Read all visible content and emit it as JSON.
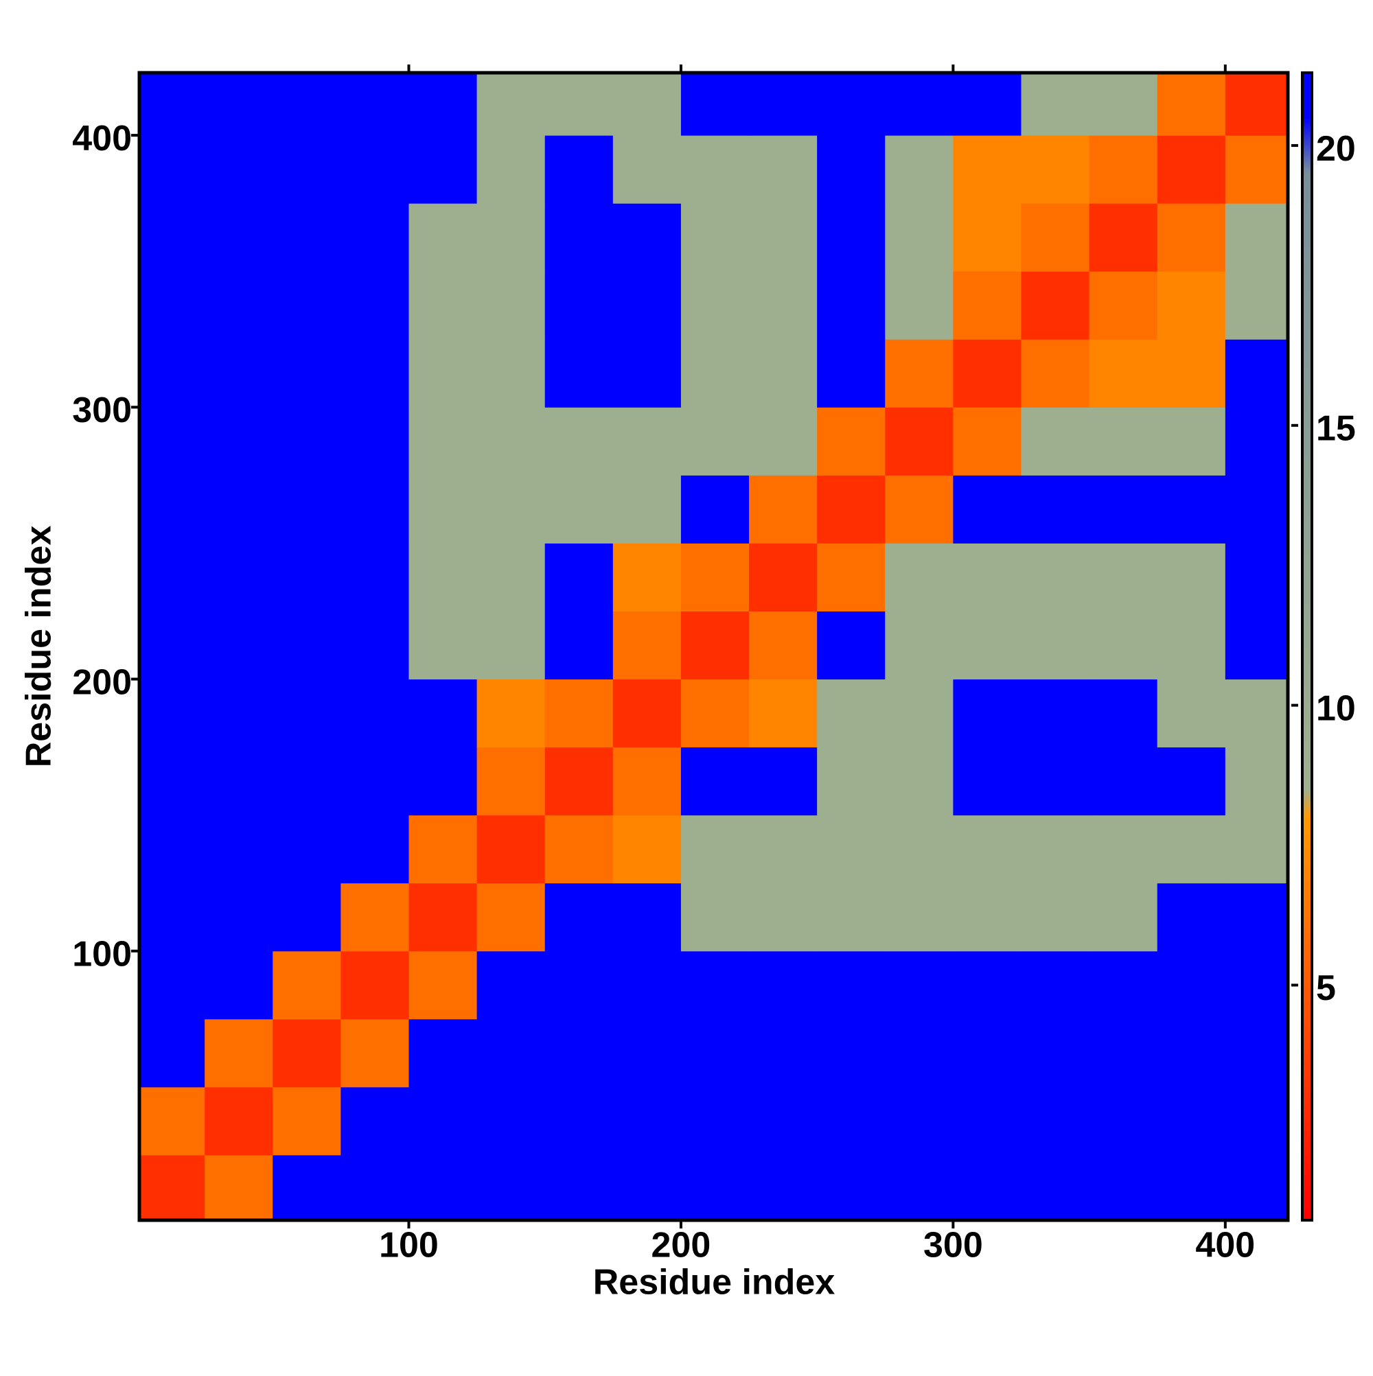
{
  "chart_data": {
    "type": "heatmap",
    "x_label": "Residue index",
    "y_label": "Residue index",
    "xlim": [
      1,
      423
    ],
    "ylim": [
      1,
      423
    ],
    "xticks": [
      100,
      200,
      300,
      400
    ],
    "yticks": [
      100,
      200,
      300,
      400
    ],
    "bins": [
      0,
      25,
      50,
      75,
      100,
      125,
      150,
      175,
      200,
      225,
      250,
      275,
      300,
      325,
      350,
      375,
      400,
      425
    ],
    "z": [
      [
        3,
        6,
        21,
        21,
        21,
        21,
        21,
        21,
        21,
        21,
        21,
        21,
        21,
        21,
        21,
        21,
        21
      ],
      [
        6,
        3,
        6,
        21,
        21,
        21,
        21,
        21,
        21,
        21,
        21,
        21,
        21,
        21,
        21,
        21,
        21
      ],
      [
        21,
        6,
        3,
        6,
        21,
        21,
        21,
        21,
        21,
        21,
        21,
        21,
        21,
        21,
        21,
        21,
        21
      ],
      [
        21,
        21,
        6,
        3,
        6,
        21,
        21,
        21,
        21,
        21,
        21,
        21,
        21,
        21,
        21,
        21,
        21
      ],
      [
        21,
        21,
        21,
        6,
        3,
        6,
        21,
        21,
        9,
        9,
        9,
        9,
        9,
        9,
        9,
        21,
        21
      ],
      [
        21,
        21,
        21,
        21,
        6,
        3,
        6,
        7,
        9,
        9,
        9,
        9,
        9,
        9,
        9,
        9,
        9
      ],
      [
        21,
        21,
        21,
        21,
        21,
        6,
        3,
        6,
        21,
        21,
        9,
        9,
        21,
        21,
        21,
        21,
        9
      ],
      [
        21,
        21,
        21,
        21,
        21,
        7,
        6,
        3,
        6,
        7,
        9,
        9,
        21,
        21,
        21,
        9,
        9
      ],
      [
        21,
        21,
        21,
        21,
        9,
        9,
        21,
        6,
        3,
        6,
        21,
        9,
        9,
        9,
        9,
        9,
        21
      ],
      [
        21,
        21,
        21,
        21,
        9,
        9,
        21,
        7,
        6,
        3,
        6,
        9,
        9,
        9,
        9,
        9,
        21
      ],
      [
        21,
        21,
        21,
        21,
        9,
        9,
        9,
        9,
        21,
        6,
        3,
        6,
        21,
        21,
        21,
        21,
        21
      ],
      [
        21,
        21,
        21,
        21,
        9,
        9,
        9,
        9,
        9,
        9,
        6,
        3,
        6,
        9,
        9,
        9,
        21
      ],
      [
        21,
        21,
        21,
        21,
        9,
        9,
        21,
        21,
        9,
        9,
        21,
        6,
        3,
        6,
        7,
        7,
        21
      ],
      [
        21,
        21,
        21,
        21,
        9,
        9,
        21,
        21,
        9,
        9,
        21,
        9,
        6,
        3,
        6,
        7,
        9
      ],
      [
        21,
        21,
        21,
        21,
        9,
        9,
        21,
        21,
        9,
        9,
        21,
        9,
        7,
        6,
        3,
        6,
        9
      ],
      [
        21,
        21,
        21,
        21,
        21,
        9,
        21,
        9,
        9,
        9,
        21,
        9,
        7,
        7,
        6,
        3,
        6
      ],
      [
        21,
        21,
        21,
        21,
        21,
        9,
        9,
        9,
        21,
        21,
        21,
        21,
        21,
        9,
        9,
        6,
        3
      ]
    ],
    "clim": [
      0.8,
      21.3
    ],
    "cticks": [
      5,
      10,
      15,
      20
    ],
    "colorscale": [
      [
        0.8,
        "#ff0000"
      ],
      [
        5,
        "#ff5a00"
      ],
      [
        8,
        "#ff9900"
      ],
      [
        8.5,
        "#a0b090"
      ],
      [
        19.5,
        "#7a8f9a"
      ],
      [
        20.5,
        "#0000ff"
      ],
      [
        21.3,
        "#0000ff"
      ]
    ]
  }
}
